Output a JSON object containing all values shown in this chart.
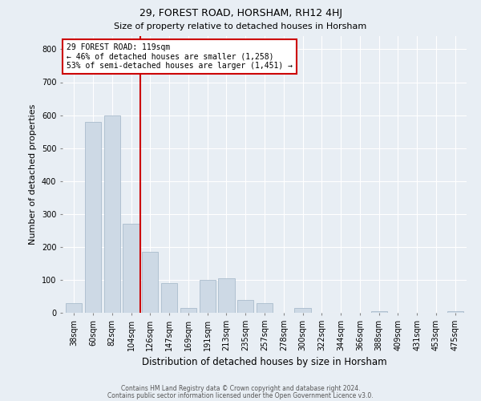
{
  "title": "29, FOREST ROAD, HORSHAM, RH12 4HJ",
  "subtitle": "Size of property relative to detached houses in Horsham",
  "xlabel": "Distribution of detached houses by size in Horsham",
  "ylabel": "Number of detached properties",
  "categories": [
    "38sqm",
    "60sqm",
    "82sqm",
    "104sqm",
    "126sqm",
    "147sqm",
    "169sqm",
    "191sqm",
    "213sqm",
    "235sqm",
    "257sqm",
    "278sqm",
    "300sqm",
    "322sqm",
    "344sqm",
    "366sqm",
    "388sqm",
    "409sqm",
    "431sqm",
    "453sqm",
    "475sqm"
  ],
  "values": [
    30,
    580,
    600,
    270,
    185,
    90,
    15,
    100,
    105,
    40,
    30,
    0,
    15,
    0,
    0,
    0,
    5,
    0,
    0,
    0,
    5
  ],
  "bar_color": "#cdd9e5",
  "bar_edge_color": "#aabccc",
  "vline_color": "#cc0000",
  "vline_x_index": 3.5,
  "annotation_title": "29 FOREST ROAD: 119sqm",
  "annotation_line1": "← 46% of detached houses are smaller (1,258)",
  "annotation_line2": "53% of semi-detached houses are larger (1,451) →",
  "annotation_box_facecolor": "#ffffff",
  "annotation_box_edgecolor": "#cc0000",
  "ylim": [
    0,
    840
  ],
  "yticks": [
    0,
    100,
    200,
    300,
    400,
    500,
    600,
    700,
    800
  ],
  "bg_color": "#e8eef4",
  "grid_color": "#ffffff",
  "title_fontsize": 9,
  "subtitle_fontsize": 8,
  "ylabel_fontsize": 8,
  "xlabel_fontsize": 8.5,
  "tick_fontsize": 7,
  "footer_line1": "Contains HM Land Registry data © Crown copyright and database right 2024.",
  "footer_line2": "Contains public sector information licensed under the Open Government Licence v3.0.",
  "footer_fontsize": 5.5,
  "footer_color": "#555555"
}
